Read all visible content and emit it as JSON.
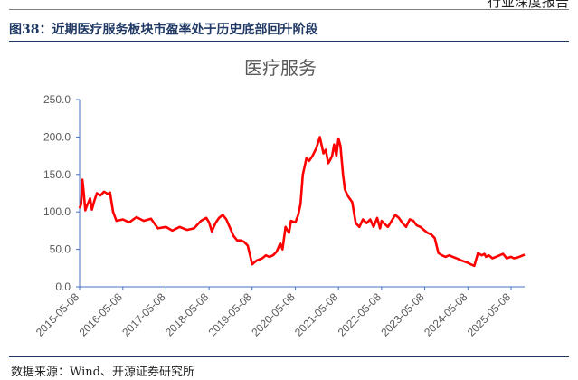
{
  "header": {
    "doc_type": "行业深度报告"
  },
  "figure": {
    "label": "图38：",
    "caption": "近期医疗服务板块市盈率处于历史底部回升阶段"
  },
  "source": "数据来源：Wind、开源证券研究所",
  "colors": {
    "line": "#ff0000",
    "axis": "#4472c4",
    "title_blue": "#1f3864"
  },
  "chart_data": {
    "type": "line",
    "title": "医疗服务",
    "xlabel": "",
    "ylabel": "",
    "ylim": [
      0,
      250
    ],
    "yticks": [
      "0.0",
      "50.0",
      "100.0",
      "150.0",
      "200.0",
      "250.0"
    ],
    "xticks": [
      "2015-05-08",
      "2016-05-08",
      "2017-05-08",
      "2018-05-08",
      "2019-05-08",
      "2020-05-08",
      "2021-05-08",
      "2022-05-08",
      "2023-05-08",
      "2024-05-08",
      "2025-05-08"
    ],
    "xrange": [
      "2015-05-08",
      "2025-08-31"
    ],
    "grid": false,
    "legend": "none",
    "series": [
      {
        "name": "",
        "x": [
          "2015-05-08",
          "2015-05-20",
          "2015-06-01",
          "2015-06-12",
          "2015-06-25",
          "2015-07-08",
          "2015-07-20",
          "2015-08-05",
          "2015-08-20",
          "2015-09-10",
          "2015-10-01",
          "2015-11-01",
          "2015-12-01",
          "2016-01-01",
          "2016-01-20",
          "2016-02-15",
          "2016-03-15",
          "2016-05-08",
          "2016-07-01",
          "2016-09-01",
          "2016-11-01",
          "2017-01-01",
          "2017-03-01",
          "2017-05-08",
          "2017-07-01",
          "2017-09-01",
          "2017-11-01",
          "2018-01-01",
          "2018-03-01",
          "2018-04-15",
          "2018-05-08",
          "2018-06-01",
          "2018-07-01",
          "2018-08-01",
          "2018-09-01",
          "2018-10-01",
          "2018-11-01",
          "2018-12-01",
          "2019-01-01",
          "2019-02-01",
          "2019-03-01",
          "2019-04-01",
          "2019-05-08",
          "2019-06-15",
          "2019-08-01",
          "2019-09-01",
          "2019-10-01",
          "2019-11-01",
          "2019-12-01",
          "2020-01-01",
          "2020-01-20",
          "2020-02-15",
          "2020-03-15",
          "2020-04-01",
          "2020-05-08",
          "2020-06-01",
          "2020-06-20",
          "2020-07-10",
          "2020-07-25",
          "2020-08-10",
          "2020-09-01",
          "2020-10-01",
          "2020-11-01",
          "2020-12-01",
          "2021-01-01",
          "2021-01-20",
          "2021-02-10",
          "2021-03-01",
          "2021-03-15",
          "2021-04-01",
          "2021-04-20",
          "2021-05-08",
          "2021-05-25",
          "2021-06-15",
          "2021-07-01",
          "2021-07-15",
          "2021-08-01",
          "2021-09-01",
          "2021-10-01",
          "2021-11-01",
          "2021-12-01",
          "2022-01-01",
          "2022-02-01",
          "2022-03-01",
          "2022-04-01",
          "2022-04-25",
          "2022-05-08",
          "2022-06-01",
          "2022-07-01",
          "2022-08-01",
          "2022-09-01",
          "2022-10-01",
          "2022-11-01",
          "2022-12-01",
          "2023-01-01",
          "2023-02-01",
          "2023-03-01",
          "2023-04-01",
          "2023-05-08",
          "2023-06-01",
          "2023-07-01",
          "2023-08-01",
          "2023-09-01",
          "2023-10-01",
          "2023-11-01",
          "2023-12-01",
          "2024-01-01",
          "2024-02-01",
          "2024-03-01",
          "2024-04-01",
          "2024-05-08",
          "2024-06-01",
          "2024-07-01",
          "2024-08-01",
          "2024-09-01",
          "2024-09-25",
          "2024-10-08",
          "2024-11-01",
          "2024-12-01",
          "2025-01-01",
          "2025-02-01",
          "2025-03-01",
          "2025-04-01",
          "2025-05-08",
          "2025-06-01",
          "2025-07-01",
          "2025-08-01",
          "2025-08-31"
        ],
        "values": [
          105,
          110,
          143,
          125,
          102,
          108,
          112,
          118,
          103,
          115,
          125,
          122,
          127,
          124,
          126,
          100,
          88,
          90,
          86,
          93,
          88,
          91,
          78,
          80,
          75,
          80,
          76,
          78,
          88,
          92,
          86,
          74,
          85,
          92,
          96,
          90,
          79,
          68,
          62,
          62,
          60,
          55,
          30,
          35,
          38,
          42,
          40,
          42,
          47,
          58,
          50,
          80,
          72,
          88,
          86,
          96,
          110,
          150,
          160,
          172,
          168,
          175,
          185,
          200,
          178,
          183,
          165,
          170,
          175,
          190,
          175,
          198,
          188,
          150,
          130,
          125,
          120,
          113,
          85,
          80,
          90,
          85,
          90,
          80,
          92,
          78,
          88,
          84,
          80,
          88,
          96,
          92,
          85,
          80,
          90,
          88,
          82,
          80,
          75,
          72,
          70,
          65,
          45,
          42,
          40,
          42,
          40,
          38,
          36,
          34,
          32,
          30,
          28,
          45,
          42,
          44,
          40,
          42,
          38,
          40,
          42,
          44,
          38,
          40,
          38,
          39,
          41,
          43
        ]
      }
    ]
  }
}
